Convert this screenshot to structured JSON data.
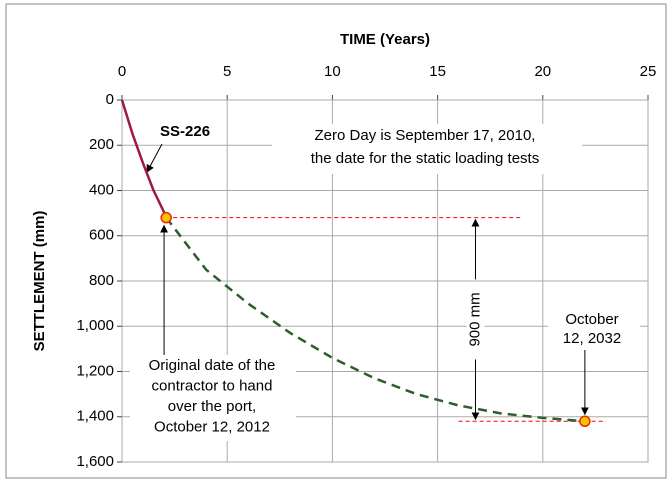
{
  "chart_data": {
    "type": "line",
    "xlabel": "TIME (Years)",
    "ylabel": "SETTLEMENT (mm)",
    "xlim": [
      0,
      25
    ],
    "xticks": [
      0,
      5,
      10,
      15,
      20,
      25
    ],
    "ylim": [
      0,
      1600
    ],
    "y_inverted": true,
    "x_axis_position": "top",
    "yticks": [
      0,
      200,
      400,
      600,
      800,
      {
        "value": 1000,
        "label": "1,000"
      },
      {
        "value": 1200,
        "label": "1,200"
      },
      {
        "value": 1400,
        "label": "1,400"
      },
      {
        "value": 1600,
        "label": "1,600"
      }
    ],
    "grid": true,
    "series": [
      {
        "style": "solid",
        "color": "#a0184a",
        "x": [
          0,
          0.5,
          1,
          1.5,
          2.1
        ],
        "values": [
          0,
          150,
          280,
          400,
          515
        ]
      },
      {
        "style": "dashed",
        "color": "#2e5e2e",
        "x": [
          2.1,
          4,
          6,
          8,
          10,
          12,
          14,
          16,
          18,
          20,
          22
        ],
        "values": [
          520,
          750,
          900,
          1030,
          1140,
          1230,
          1300,
          1350,
          1385,
          1405,
          1420
        ]
      },
      {
        "style": "markers",
        "color": "#ffc000",
        "x": [
          2.1,
          22
        ],
        "values": [
          520,
          1420
        ]
      }
    ],
    "annotations": [
      {
        "lines": [
          "SS-226"
        ]
      },
      {
        "lines": [
          "Zero Day  is September 17, 2010,",
          "the date for the static loading tests"
        ]
      },
      {
        "lines": [
          "900 mm"
        ]
      },
      {
        "lines": [
          "October",
          "12, 2032"
        ]
      },
      {
        "lines": [
          "Original date of the",
          "contractor to hand",
          "over the port,",
          "October 12, 2012"
        ]
      }
    ]
  }
}
